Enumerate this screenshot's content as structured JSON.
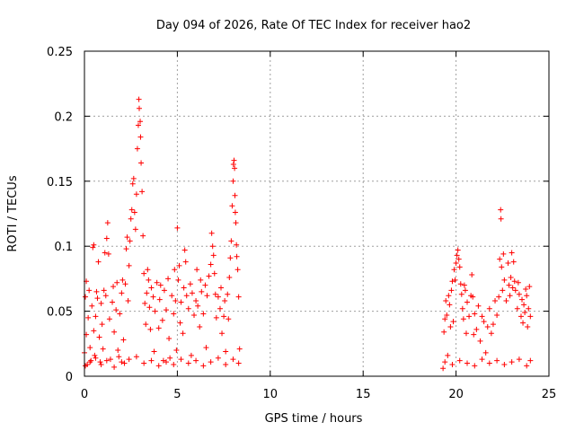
{
  "chart_data": {
    "type": "scatter",
    "title": "Day 094 of 2026, Rate Of TEC Index for receiver hao2",
    "xlabel": "GPS time / hours",
    "ylabel": "ROTI / TECUs",
    "xlim": [
      0,
      25
    ],
    "ylim": [
      0,
      0.25
    ],
    "x_ticks": [
      "0",
      "5",
      "10",
      "15",
      "20",
      "25"
    ],
    "y_ticks": [
      "0",
      "0.05",
      "0.1",
      "0.15",
      "0.2",
      "0.25"
    ],
    "x_tick_values": [
      0,
      5,
      10,
      15,
      20,
      25
    ],
    "y_tick_values": [
      0,
      0.05,
      0.1,
      0.15,
      0.2,
      0.25
    ],
    "grid": true,
    "marker": "+",
    "color": "#ff0000",
    "series": [
      {
        "points": [
          [
            0.0,
            0.018
          ],
          [
            0.05,
            0.061
          ],
          [
            0.1,
            0.073
          ],
          [
            0.1,
            0.032
          ],
          [
            0.15,
            0.009
          ],
          [
            0.2,
            0.045
          ],
          [
            0.25,
            0.066
          ],
          [
            0.3,
            0.022
          ],
          [
            0.35,
            0.012
          ],
          [
            0.4,
            0.054
          ],
          [
            0.45,
            0.099
          ],
          [
            0.5,
            0.101
          ],
          [
            0.5,
            0.035
          ],
          [
            0.55,
            0.016
          ],
          [
            0.6,
            0.046
          ],
          [
            0.65,
            0.065
          ],
          [
            0.7,
            0.06
          ],
          [
            0.75,
            0.088
          ],
          [
            0.8,
            0.03
          ],
          [
            0.85,
            0.011
          ],
          [
            0.9,
            0.056
          ],
          [
            0.95,
            0.04
          ],
          [
            1.0,
            0.021
          ],
          [
            1.05,
            0.066
          ],
          [
            1.1,
            0.095
          ],
          [
            1.15,
            0.062
          ],
          [
            1.2,
            0.106
          ],
          [
            1.25,
            0.118
          ],
          [
            1.3,
            0.094
          ],
          [
            1.35,
            0.044
          ],
          [
            1.4,
            0.013
          ],
          [
            1.5,
            0.057
          ],
          [
            1.55,
            0.069
          ],
          [
            1.6,
            0.034
          ],
          [
            1.7,
            0.051
          ],
          [
            1.75,
            0.072
          ],
          [
            1.8,
            0.02
          ],
          [
            1.85,
            0.015
          ],
          [
            1.9,
            0.048
          ],
          [
            2.0,
            0.064
          ],
          [
            2.05,
            0.074
          ],
          [
            2.1,
            0.028
          ],
          [
            2.15,
            0.01
          ],
          [
            2.2,
            0.071
          ],
          [
            2.25,
            0.098
          ],
          [
            2.3,
            0.107
          ],
          [
            2.35,
            0.058
          ],
          [
            2.4,
            0.085
          ],
          [
            2.45,
            0.104
          ],
          [
            2.5,
            0.121
          ],
          [
            2.55,
            0.128
          ],
          [
            2.6,
            0.148
          ],
          [
            2.65,
            0.152
          ],
          [
            2.7,
            0.126
          ],
          [
            2.75,
            0.113
          ],
          [
            2.8,
            0.14
          ],
          [
            2.85,
            0.175
          ],
          [
            2.9,
            0.193
          ],
          [
            2.93,
            0.213
          ],
          [
            2.95,
            0.206
          ],
          [
            3.0,
            0.196
          ],
          [
            3.02,
            0.184
          ],
          [
            3.05,
            0.164
          ],
          [
            3.1,
            0.142
          ],
          [
            3.15,
            0.108
          ],
          [
            3.2,
            0.079
          ],
          [
            3.25,
            0.056
          ],
          [
            3.3,
            0.04
          ],
          [
            3.35,
            0.064
          ],
          [
            3.4,
            0.082
          ],
          [
            3.45,
            0.074
          ],
          [
            3.5,
            0.053
          ],
          [
            3.55,
            0.036
          ],
          [
            3.6,
            0.068
          ],
          [
            3.7,
            0.061
          ],
          [
            3.75,
            0.019
          ],
          [
            3.8,
            0.05
          ],
          [
            3.9,
            0.072
          ],
          [
            4.0,
            0.037
          ],
          [
            4.05,
            0.059
          ],
          [
            4.1,
            0.07
          ],
          [
            4.2,
            0.043
          ],
          [
            4.25,
            0.012
          ],
          [
            4.3,
            0.066
          ],
          [
            4.4,
            0.051
          ],
          [
            4.5,
            0.075
          ],
          [
            4.55,
            0.029
          ],
          [
            4.6,
            0.014
          ],
          [
            4.7,
            0.062
          ],
          [
            4.8,
            0.048
          ],
          [
            4.85,
            0.082
          ],
          [
            4.9,
            0.058
          ],
          [
            4.95,
            0.02
          ],
          [
            5.0,
            0.114
          ],
          [
            5.05,
            0.074
          ],
          [
            5.1,
            0.085
          ],
          [
            5.15,
            0.041
          ],
          [
            5.2,
            0.057
          ],
          [
            5.3,
            0.033
          ],
          [
            5.35,
            0.068
          ],
          [
            5.4,
            0.097
          ],
          [
            5.45,
            0.088
          ],
          [
            5.5,
            0.062
          ],
          [
            5.6,
            0.052
          ],
          [
            5.7,
            0.071
          ],
          [
            5.75,
            0.016
          ],
          [
            5.8,
            0.064
          ],
          [
            5.9,
            0.047
          ],
          [
            6.0,
            0.058
          ],
          [
            6.05,
            0.082
          ],
          [
            6.1,
            0.054
          ],
          [
            6.2,
            0.038
          ],
          [
            6.25,
            0.074
          ],
          [
            6.3,
            0.065
          ],
          [
            6.4,
            0.048
          ],
          [
            6.5,
            0.07
          ],
          [
            6.55,
            0.022
          ],
          [
            6.6,
            0.062
          ],
          [
            6.7,
            0.077
          ],
          [
            6.8,
            0.086
          ],
          [
            6.85,
            0.11
          ],
          [
            6.9,
            0.1
          ],
          [
            6.95,
            0.093
          ],
          [
            7.0,
            0.079
          ],
          [
            7.05,
            0.063
          ],
          [
            7.1,
            0.045
          ],
          [
            7.2,
            0.061
          ],
          [
            7.3,
            0.052
          ],
          [
            7.35,
            0.068
          ],
          [
            7.4,
            0.033
          ],
          [
            7.5,
            0.046
          ],
          [
            7.55,
            0.058
          ],
          [
            7.6,
            0.019
          ],
          [
            7.7,
            0.063
          ],
          [
            7.75,
            0.044
          ],
          [
            7.8,
            0.076
          ],
          [
            7.85,
            0.091
          ],
          [
            7.9,
            0.104
          ],
          [
            7.95,
            0.131
          ],
          [
            8.0,
            0.15
          ],
          [
            8.02,
            0.163
          ],
          [
            8.05,
            0.166
          ],
          [
            8.08,
            0.16
          ],
          [
            8.1,
            0.139
          ],
          [
            8.12,
            0.126
          ],
          [
            8.15,
            0.118
          ],
          [
            8.18,
            0.101
          ],
          [
            8.2,
            0.092
          ],
          [
            8.25,
            0.082
          ],
          [
            8.3,
            0.061
          ],
          [
            8.35,
            0.021
          ],
          [
            0.05,
            0.008
          ],
          [
            0.3,
            0.011
          ],
          [
            0.6,
            0.014
          ],
          [
            0.9,
            0.009
          ],
          [
            1.2,
            0.012
          ],
          [
            1.6,
            0.007
          ],
          [
            2.0,
            0.011
          ],
          [
            2.4,
            0.013
          ],
          [
            2.8,
            0.015
          ],
          [
            3.2,
            0.01
          ],
          [
            3.6,
            0.012
          ],
          [
            4.0,
            0.008
          ],
          [
            4.4,
            0.011
          ],
          [
            4.8,
            0.009
          ],
          [
            5.2,
            0.013
          ],
          [
            5.6,
            0.01
          ],
          [
            6.0,
            0.012
          ],
          [
            6.4,
            0.008
          ],
          [
            6.8,
            0.011
          ],
          [
            7.2,
            0.014
          ],
          [
            7.6,
            0.009
          ],
          [
            8.0,
            0.013
          ],
          [
            8.3,
            0.01
          ],
          [
            19.3,
            0.006
          ],
          [
            19.35,
            0.034
          ],
          [
            19.4,
            0.044
          ],
          [
            19.45,
            0.058
          ],
          [
            19.5,
            0.047
          ],
          [
            19.55,
            0.016
          ],
          [
            19.6,
            0.062
          ],
          [
            19.65,
            0.055
          ],
          [
            19.7,
            0.038
          ],
          [
            19.75,
            0.066
          ],
          [
            19.8,
            0.073
          ],
          [
            19.85,
            0.042
          ],
          [
            19.9,
            0.082
          ],
          [
            19.95,
            0.074
          ],
          [
            20.0,
            0.087
          ],
          [
            20.05,
            0.093
          ],
          [
            20.1,
            0.097
          ],
          [
            20.15,
            0.09
          ],
          [
            20.2,
            0.084
          ],
          [
            20.25,
            0.071
          ],
          [
            20.3,
            0.063
          ],
          [
            20.35,
            0.052
          ],
          [
            20.4,
            0.044
          ],
          [
            20.45,
            0.07
          ],
          [
            20.5,
            0.066
          ],
          [
            20.55,
            0.033
          ],
          [
            20.6,
            0.057
          ],
          [
            20.7,
            0.046
          ],
          [
            20.8,
            0.062
          ],
          [
            20.85,
            0.078
          ],
          [
            20.9,
            0.061
          ],
          [
            20.95,
            0.032
          ],
          [
            21.0,
            0.048
          ],
          [
            21.1,
            0.036
          ],
          [
            21.2,
            0.054
          ],
          [
            21.3,
            0.027
          ],
          [
            21.4,
            0.046
          ],
          [
            21.5,
            0.042
          ],
          [
            21.6,
            0.018
          ],
          [
            21.7,
            0.038
          ],
          [
            21.8,
            0.052
          ],
          [
            21.9,
            0.033
          ],
          [
            22.0,
            0.04
          ],
          [
            22.1,
            0.058
          ],
          [
            22.2,
            0.047
          ],
          [
            22.3,
            0.061
          ],
          [
            22.35,
            0.09
          ],
          [
            22.4,
            0.128
          ],
          [
            22.42,
            0.121
          ],
          [
            22.45,
            0.084
          ],
          [
            22.5,
            0.066
          ],
          [
            22.55,
            0.094
          ],
          [
            22.6,
            0.074
          ],
          [
            22.7,
            0.058
          ],
          [
            22.8,
            0.087
          ],
          [
            22.85,
            0.07
          ],
          [
            22.9,
            0.062
          ],
          [
            22.95,
            0.076
          ],
          [
            23.0,
            0.095
          ],
          [
            23.05,
            0.068
          ],
          [
            23.1,
            0.088
          ],
          [
            23.15,
            0.073
          ],
          [
            23.2,
            0.066
          ],
          [
            23.3,
            0.052
          ],
          [
            23.35,
            0.072
          ],
          [
            23.4,
            0.063
          ],
          [
            23.5,
            0.046
          ],
          [
            23.55,
            0.059
          ],
          [
            23.6,
            0.041
          ],
          [
            23.65,
            0.055
          ],
          [
            23.7,
            0.049
          ],
          [
            23.75,
            0.067
          ],
          [
            23.8,
            0.062
          ],
          [
            23.85,
            0.038
          ],
          [
            23.9,
            0.052
          ],
          [
            23.95,
            0.069
          ],
          [
            24.0,
            0.046
          ],
          [
            19.4,
            0.011
          ],
          [
            19.8,
            0.009
          ],
          [
            20.2,
            0.012
          ],
          [
            20.6,
            0.01
          ],
          [
            21.0,
            0.008
          ],
          [
            21.4,
            0.013
          ],
          [
            21.8,
            0.01
          ],
          [
            22.2,
            0.012
          ],
          [
            22.6,
            0.009
          ],
          [
            23.0,
            0.011
          ],
          [
            23.4,
            0.013
          ],
          [
            23.8,
            0.008
          ],
          [
            24.0,
            0.012
          ]
        ]
      }
    ]
  }
}
